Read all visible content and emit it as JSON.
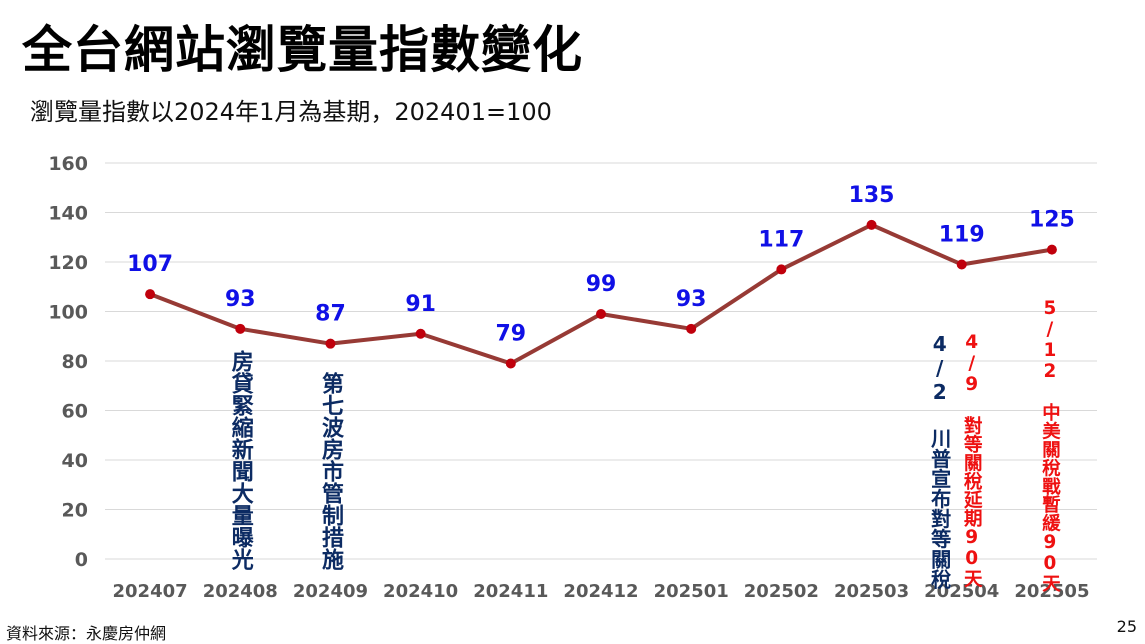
{
  "title": "全台網站瀏覽量指數變化",
  "subtitle": "瀏覽量指數以2024年1月為基期，202401=100",
  "source": "資料來源：永慶房仲網",
  "page_number": "25",
  "colors": {
    "line": "#973a35",
    "point": "#c0000c",
    "value_label": "#1010e6",
    "annotation_navy": "#0c2b63",
    "annotation_red": "#ee1111",
    "grid": "#d9d9d9",
    "tick": "#595959"
  },
  "chart_data": {
    "type": "line",
    "title": "",
    "xlabel": "",
    "ylabel": "",
    "ylim": [
      0,
      160
    ],
    "yticks": [
      0,
      20,
      40,
      60,
      80,
      100,
      120,
      140,
      160
    ],
    "grid": true,
    "categories": [
      "202407",
      "202408",
      "202409",
      "202410",
      "202411",
      "202412",
      "202501",
      "202502",
      "202503",
      "202504",
      "202505"
    ],
    "series": [
      {
        "values": [
          107,
          93,
          87,
          91,
          79,
          99,
          93,
          117,
          135,
          119,
          125
        ]
      }
    ],
    "data_labels": [
      "107",
      "93",
      "87",
      "91",
      "79",
      "99",
      "93",
      "117",
      "135",
      "119",
      "125"
    ],
    "annotations": [
      {
        "category": "202408",
        "text": "房貸緊縮新聞大量曝光",
        "color": "navy"
      },
      {
        "category": "202409",
        "text": "第七波房市管制措施",
        "color": "navy"
      },
      {
        "category": "202504",
        "text": "4/2 川普宣布對等關稅",
        "color": "navy"
      },
      {
        "category": "202504",
        "text": "4/9 對等關稅延期90天",
        "color": "red"
      },
      {
        "category": "202505",
        "text": "5/12 中美關稅戰暫緩90天",
        "color": "red"
      }
    ]
  }
}
